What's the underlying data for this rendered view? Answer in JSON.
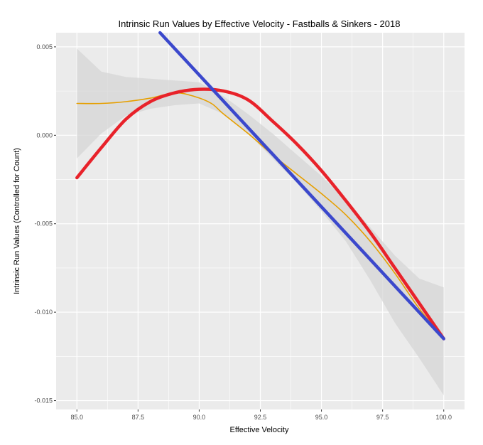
{
  "chart_data": {
    "type": "line",
    "title": "Intrinsic Run Values by Effective Velocity - Fastballs & Sinkers - 2018",
    "xlabel": "Effective Velocity",
    "ylabel": "Intrinsic Run Values (Controlled for Count)",
    "xlim": [
      84.15,
      100.85
    ],
    "ylim": [
      -0.0155,
      0.0058
    ],
    "x_ticks": [
      85.0,
      87.5,
      90.0,
      92.5,
      95.0,
      97.5,
      100.0
    ],
    "x_tick_labels": [
      "85.0",
      "87.5",
      "90.0",
      "92.5",
      "95.0",
      "97.5",
      "100.0"
    ],
    "y_ticks": [
      -0.015,
      -0.01,
      -0.005,
      0.0,
      0.005
    ],
    "y_tick_labels": [
      "-0.015",
      "-0.010",
      "-0.005",
      "0.000",
      "0.005"
    ],
    "grid": true,
    "legend": "none",
    "colors": {
      "panel": "#ebebeb",
      "grid": "#ffffff",
      "band": "#d6d6d6",
      "series_smooth": "#e69f00",
      "series_quadratic": "#e8222a",
      "series_linear": "#3b48cc"
    },
    "band": {
      "x": [
        85,
        86,
        87,
        88,
        89,
        90,
        91,
        92,
        93,
        94,
        95,
        96,
        97,
        98,
        99,
        100
      ],
      "upper": [
        0.0049,
        0.0036,
        0.0033,
        0.0032,
        0.0031,
        0.003,
        0.0022,
        0.0012,
        0.0001,
        -0.0011,
        -0.0023,
        -0.0037,
        -0.0052,
        -0.0068,
        -0.0081,
        -0.0086
      ],
      "lower": [
        -0.0013,
        0.0001,
        0.0011,
        0.0015,
        0.0017,
        0.0018,
        0.0012,
        0.0001,
        -0.0013,
        -0.0027,
        -0.0043,
        -0.006,
        -0.0082,
        -0.0106,
        -0.0126,
        -0.0147
      ]
    },
    "series": [
      {
        "x": [
          85,
          86,
          87,
          88,
          89,
          89.8,
          90.5,
          91,
          92,
          93,
          94,
          95,
          96,
          97,
          98,
          99,
          100
        ],
        "values": [
          0.0018,
          0.0018,
          0.0019,
          0.0021,
          0.0024,
          0.0022,
          0.0018,
          0.0012,
          0.0001,
          -0.0011,
          -0.0022,
          -0.0033,
          -0.0045,
          -0.006,
          -0.0078,
          -0.0098,
          -0.0115
        ]
      },
      {
        "x": [
          85,
          86,
          87,
          88,
          89,
          90,
          91,
          92,
          93,
          94,
          95,
          96,
          97,
          98,
          99,
          100
        ],
        "values": [
          -0.0024,
          -0.0007,
          0.0009,
          0.0019,
          0.0024,
          0.0026,
          0.0025,
          0.002,
          0.0008,
          -0.0005,
          -0.002,
          -0.0037,
          -0.0055,
          -0.0075,
          -0.0095,
          -0.0115
        ]
      },
      {
        "x": [
          88.4,
          100
        ],
        "values": [
          0.0058,
          -0.0115
        ]
      }
    ]
  }
}
